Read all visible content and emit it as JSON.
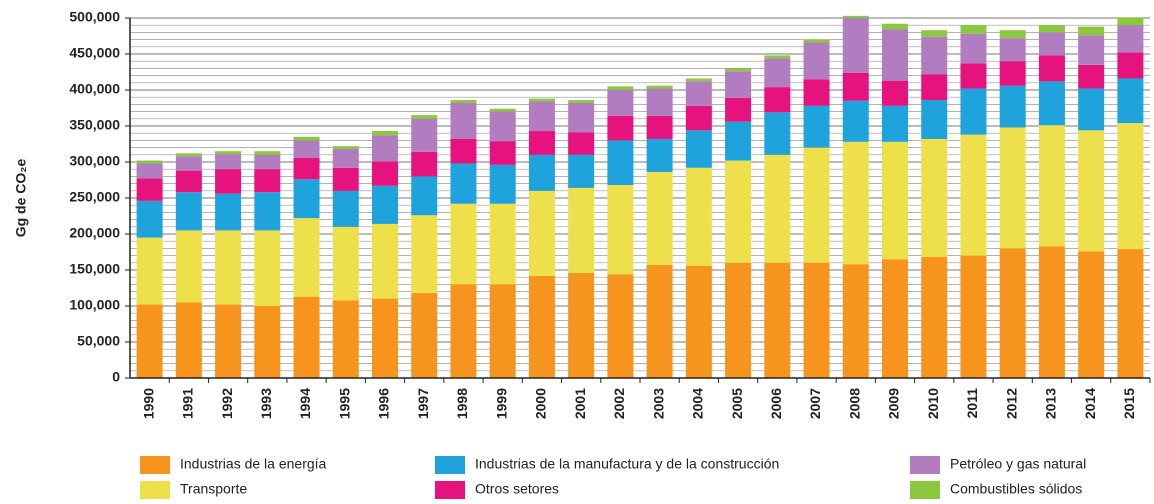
{
  "chart_data": {
    "type": "stacked_bar",
    "y_label": "Gg de CO₂e",
    "categories": [
      "1990",
      "1991",
      "1992",
      "1993",
      "1994",
      "1995",
      "1996",
      "1997",
      "1998",
      "1999",
      "2000",
      "2001",
      "2002",
      "2003",
      "2004",
      "2005",
      "2006",
      "2007",
      "2008",
      "2009",
      "2010",
      "2011",
      "2012",
      "2013",
      "2014",
      "2015"
    ],
    "series": [
      {
        "name": "Industrias de la energía",
        "color": "#f7941d",
        "values": [
          102000,
          105000,
          102000,
          100000,
          113000,
          108000,
          110000,
          118000,
          130000,
          130000,
          142000,
          146000,
          144000,
          157000,
          156000,
          160000,
          160000,
          160000,
          158000,
          165000,
          168000,
          170000,
          180000,
          183000,
          176000,
          179000
        ]
      },
      {
        "name": "Transporte",
        "color": "#ede04a",
        "values": [
          93000,
          100000,
          103000,
          105000,
          109000,
          102000,
          104000,
          108000,
          112000,
          112000,
          118000,
          118000,
          124000,
          129000,
          136000,
          142000,
          150000,
          160000,
          170000,
          163000,
          164000,
          168000,
          168000,
          168000,
          168000,
          175000
        ]
      },
      {
        "name": "Industrias de la manufactura y de la construcción",
        "color": "#1fa3dc",
        "values": [
          51000,
          53000,
          51000,
          53000,
          54000,
          50000,
          53000,
          54000,
          56000,
          54000,
          50000,
          46000,
          62000,
          46000,
          52000,
          54000,
          59000,
          58000,
          57000,
          50000,
          54000,
          64000,
          58000,
          61000,
          58000,
          62000
        ]
      },
      {
        "name": "Otros setores",
        "color": "#e6137f",
        "values": [
          31000,
          30000,
          34000,
          32000,
          30000,
          32000,
          34000,
          34000,
          34000,
          33000,
          33000,
          31000,
          34000,
          32000,
          34000,
          33000,
          35000,
          37000,
          39000,
          35000,
          36000,
          35000,
          34000,
          36000,
          33000,
          36000
        ]
      },
      {
        "name": "Petróleo y gas natural",
        "color": "#b27cc0",
        "values": [
          21000,
          20000,
          21000,
          20000,
          24000,
          26000,
          36000,
          46000,
          50000,
          41000,
          41000,
          41000,
          36000,
          38000,
          34000,
          37000,
          40000,
          51000,
          76000,
          71000,
          52000,
          41000,
          32000,
          32000,
          41000,
          38000
        ]
      },
      {
        "name": "Combustibles sólidos",
        "color": "#8dc63f",
        "values": [
          4000,
          4000,
          4000,
          5000,
          5000,
          4000,
          6000,
          5000,
          4000,
          4000,
          4000,
          4000,
          5000,
          4000,
          4000,
          4000,
          4000,
          4000,
          3000,
          8000,
          9000,
          12000,
          11000,
          10000,
          12000,
          11000
        ]
      }
    ],
    "ylim": [
      0,
      500000
    ],
    "yticks": [
      0,
      {
        "value": 50000,
        "label": "50,000"
      },
      {
        "value": 100000,
        "label": "100,000"
      },
      {
        "value": 150000,
        "label": "150,000"
      },
      {
        "value": 200000,
        "label": "200,000"
      },
      {
        "value": 250000,
        "label": "250,000"
      },
      {
        "value": 300000,
        "label": "300,000"
      },
      {
        "value": 350000,
        "label": "350,000"
      },
      {
        "value": 400000,
        "label": "400,000"
      },
      {
        "value": 450000,
        "label": "450,000"
      },
      {
        "value": 500000,
        "label": "500,000"
      }
    ],
    "minor_yticks": [
      10000,
      20000,
      30000,
      40000,
      60000,
      70000,
      80000,
      90000,
      110000,
      120000,
      130000,
      140000,
      160000,
      170000,
      180000,
      190000,
      210000,
      220000,
      230000,
      240000,
      260000,
      270000,
      280000,
      290000,
      310000,
      320000,
      330000,
      340000,
      360000,
      370000,
      380000,
      390000,
      410000,
      420000,
      430000,
      440000,
      460000,
      470000,
      480000,
      490000
    ],
    "grid": true,
    "legend": "bottom"
  }
}
